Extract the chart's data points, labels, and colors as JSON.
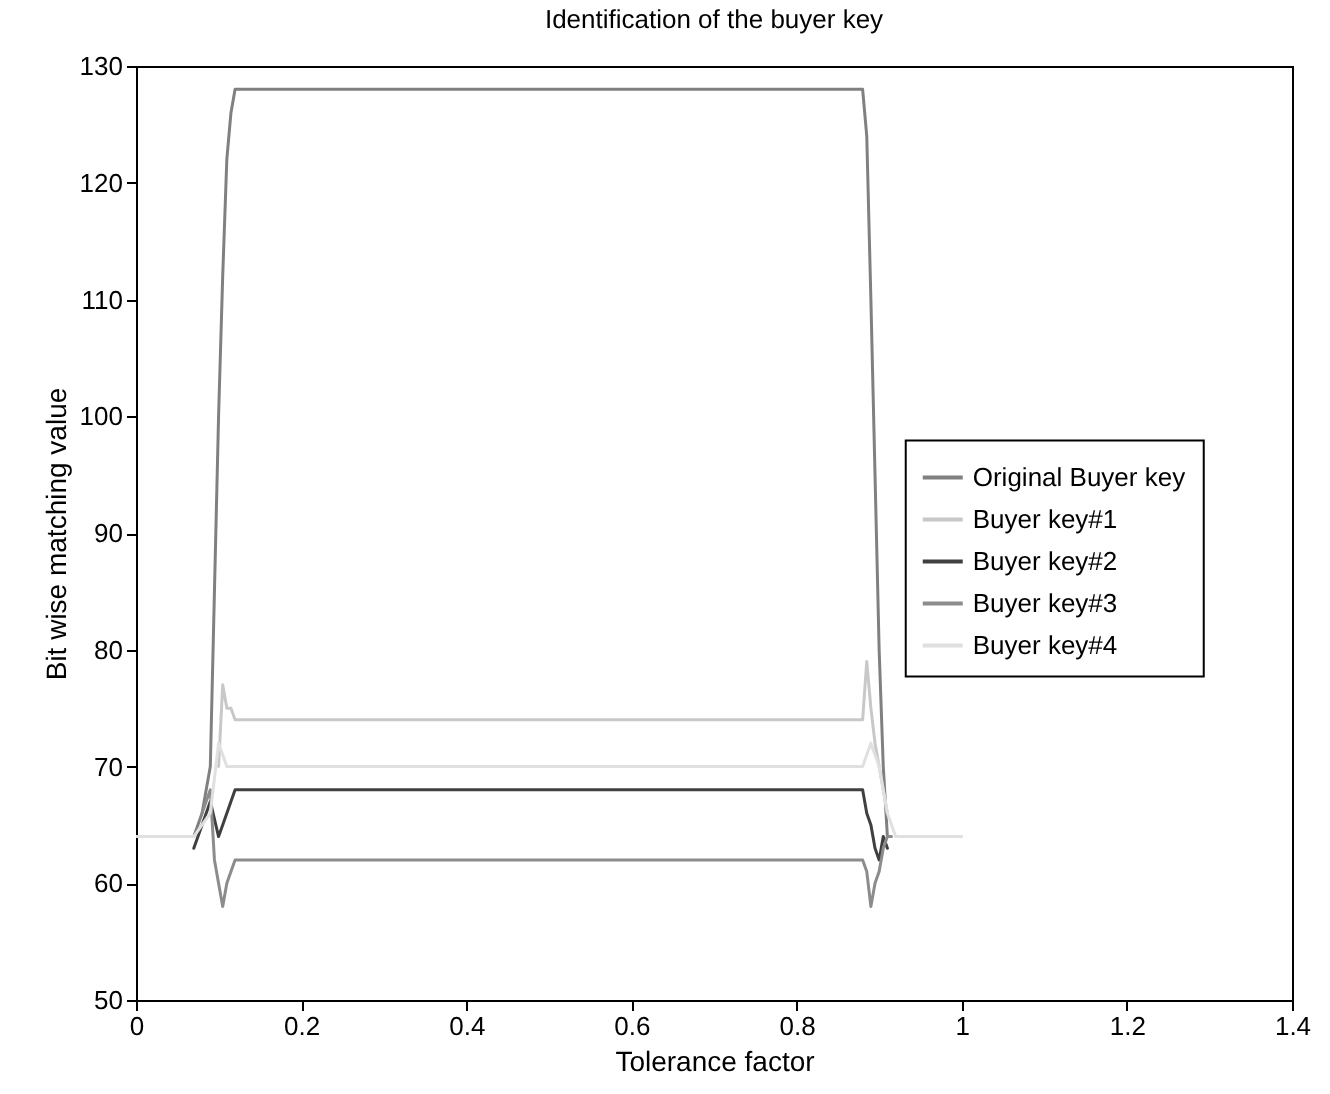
{
  "chart_data": {
    "type": "line",
    "title": "Identification of the buyer key",
    "xlabel": "Tolerance factor",
    "ylabel": "Bit wise matching value",
    "xlim": [
      0,
      1.4
    ],
    "xticks": [
      0,
      0.2,
      0.4,
      0.6,
      0.8,
      1,
      1.2,
      1.4
    ],
    "ylim": [
      50,
      130
    ],
    "yticks": [
      50,
      60,
      70,
      80,
      90,
      100,
      110,
      120,
      130
    ],
    "grid": false,
    "legend": "right",
    "marker": "none",
    "line_style": "solid",
    "series": [
      {
        "name": "Original Buyer key",
        "color": "#808080",
        "x": [
          0.07,
          0.08,
          0.09,
          0.095,
          0.1,
          0.105,
          0.11,
          0.115,
          0.12,
          0.88,
          0.885,
          0.89,
          0.895,
          0.9,
          0.905,
          0.91
        ],
        "values": [
          64,
          66,
          70,
          85,
          100,
          112,
          122,
          126,
          128,
          128,
          124,
          110,
          95,
          80,
          70,
          64
        ]
      },
      {
        "name": "Buyer key#1",
        "color": "#c8c8c8",
        "x": [
          0.1,
          0.105,
          0.11,
          0.115,
          0.12,
          0.88,
          0.885,
          0.89,
          0.895,
          0.9,
          0.905,
          0.91
        ],
        "values": [
          70,
          77,
          75,
          75,
          74,
          74,
          79,
          75,
          72,
          70,
          68,
          66
        ]
      },
      {
        "name": "Buyer key#2",
        "color": "#404040",
        "x": [
          0.07,
          0.08,
          0.09,
          0.1,
          0.105,
          0.11,
          0.115,
          0.12,
          0.88,
          0.885,
          0.89,
          0.895,
          0.9,
          0.905,
          0.91
        ],
        "values": [
          63,
          65,
          67,
          64,
          65,
          66,
          67,
          68,
          68,
          66,
          65,
          63,
          62,
          64,
          63
        ]
      },
      {
        "name": "Buyer key#3",
        "color": "#8c8c8c",
        "x": [
          0.08,
          0.09,
          0.095,
          0.1,
          0.105,
          0.11,
          0.115,
          0.12,
          0.88,
          0.885,
          0.89,
          0.895,
          0.9,
          0.905,
          0.91,
          0.915
        ],
        "values": [
          66,
          68,
          62,
          60,
          58,
          60,
          61,
          62,
          62,
          61,
          58,
          60,
          61,
          63,
          64,
          64
        ]
      },
      {
        "name": "Buyer key#4",
        "color": "#e0e0e0",
        "x": [
          0,
          0.07,
          0.09,
          0.1,
          0.105,
          0.11,
          0.115,
          0.12,
          0.88,
          0.89,
          0.9,
          0.91,
          0.92,
          1
        ],
        "values": [
          64,
          64,
          66,
          72,
          71,
          70,
          70,
          70,
          70,
          72,
          70,
          66,
          64,
          64
        ]
      }
    ]
  }
}
